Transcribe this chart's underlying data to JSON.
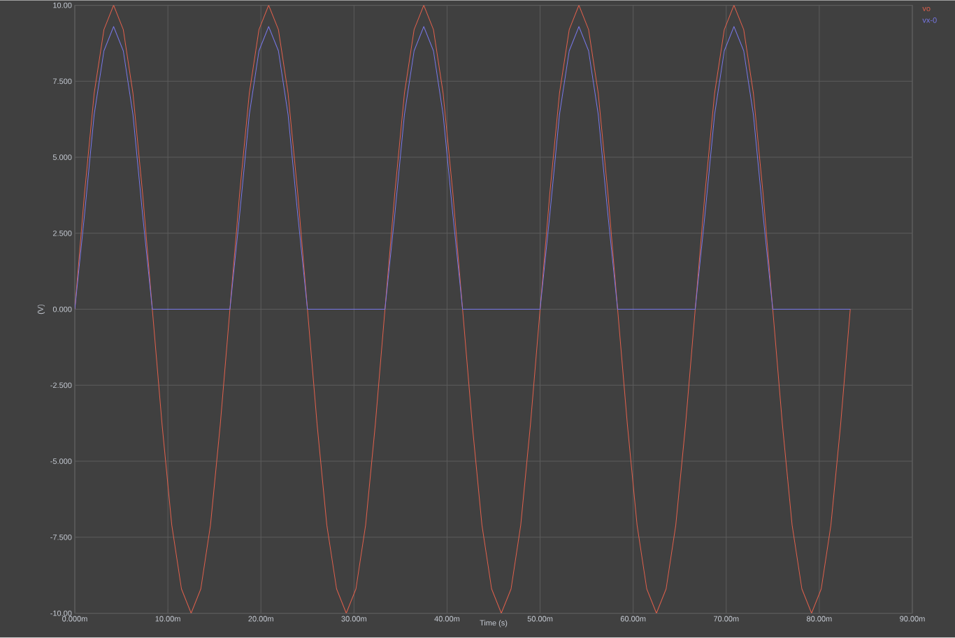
{
  "chart_data": {
    "type": "line",
    "xlabel": "Time (s)",
    "ylabel": "(V)",
    "x": [
      0,
      1.04,
      2.08,
      3.13,
      4.17,
      5.21,
      6.25,
      7.29,
      8.33,
      9.38,
      10.42,
      11.46,
      12.5,
      13.54,
      14.58,
      15.63,
      16.67,
      17.71,
      18.75,
      19.79,
      20.83,
      21.88,
      22.92,
      23.96,
      25,
      26.04,
      27.08,
      28.13,
      29.17,
      30.21,
      31.25,
      32.29,
      33.33,
      34.38,
      35.42,
      36.46,
      37.5,
      38.54,
      39.58,
      40.63,
      41.67,
      42.71,
      43.75,
      44.79,
      45.83,
      46.88,
      47.92,
      48.96,
      50,
      51.04,
      52.08,
      53.13,
      54.17,
      55.21,
      56.25,
      57.29,
      58.33,
      59.38,
      60.42,
      61.46,
      62.5,
      63.54,
      64.58,
      65.63,
      66.67,
      67.71,
      68.75,
      69.79,
      70.83,
      71.88,
      72.92,
      73.96,
      75,
      76.04,
      77.08,
      78.13,
      79.17,
      80.21,
      81.25,
      82.29,
      83.33
    ],
    "series": [
      {
        "name": "vo",
        "color": "#e0604c",
        "values": [
          0,
          3.8,
          7.1,
          9.2,
          10,
          9.2,
          7.1,
          3.8,
          0,
          -3.8,
          -7.1,
          -9.2,
          -10,
          -9.2,
          -7.1,
          -3.8,
          0,
          3.8,
          7.1,
          9.2,
          10,
          9.2,
          7.1,
          3.8,
          0,
          -3.8,
          -7.1,
          -9.2,
          -10,
          -9.2,
          -7.1,
          -3.8,
          0,
          3.8,
          7.1,
          9.2,
          10,
          9.2,
          7.1,
          3.8,
          0,
          -3.8,
          -7.1,
          -9.2,
          -10,
          -9.2,
          -7.1,
          -3.8,
          0,
          3.8,
          7.1,
          9.2,
          10,
          9.2,
          7.1,
          3.8,
          0,
          -3.8,
          -7.1,
          -9.2,
          -10,
          -9.2,
          -7.1,
          -3.8,
          0,
          3.8,
          7.1,
          9.2,
          10,
          9.2,
          7.1,
          3.8,
          0,
          -3.8,
          -7.1,
          -9.2,
          -10,
          -9.2,
          -7.1,
          -3.8,
          0
        ]
      },
      {
        "name": "vx-0",
        "color": "#7878e8",
        "values": [
          0,
          3.1,
          6.4,
          8.5,
          9.3,
          8.5,
          6.4,
          3.1,
          0,
          0,
          0,
          0,
          0,
          0,
          0,
          0,
          0,
          3.1,
          6.4,
          8.5,
          9.3,
          8.5,
          6.4,
          3.1,
          0,
          0,
          0,
          0,
          0,
          0,
          0,
          0,
          0,
          3.1,
          6.4,
          8.5,
          9.3,
          8.5,
          6.4,
          3.1,
          0,
          0,
          0,
          0,
          0,
          0,
          0,
          0,
          0,
          3.1,
          6.4,
          8.5,
          9.3,
          8.5,
          6.4,
          3.1,
          0,
          0,
          0,
          0,
          0,
          0,
          0,
          0,
          0,
          3.1,
          6.4,
          8.5,
          9.3,
          8.5,
          6.4,
          3.1,
          0,
          0,
          0,
          0,
          0,
          0,
          0,
          0,
          0
        ]
      }
    ],
    "xlim": [
      0,
      90
    ],
    "ylim": [
      -10,
      10
    ],
    "xticks": [
      {
        "value": 0,
        "label": "0.000m"
      },
      {
        "value": 10,
        "label": "10.00m"
      },
      {
        "value": 20,
        "label": "20.00m"
      },
      {
        "value": 30,
        "label": "30.00m"
      },
      {
        "value": 40,
        "label": "40.00m"
      },
      {
        "value": 50,
        "label": "50.00m"
      },
      {
        "value": 60,
        "label": "60.00m"
      },
      {
        "value": 70,
        "label": "70.00m"
      },
      {
        "value": 80,
        "label": "80.00m"
      },
      {
        "value": 90,
        "label": "90.00m"
      }
    ],
    "yticks": [
      {
        "value": -10,
        "label": "-10.00"
      },
      {
        "value": -7.5,
        "label": "-7.500"
      },
      {
        "value": -5,
        "label": "-5.000"
      },
      {
        "value": -2.5,
        "label": "-2.500"
      },
      {
        "value": 0,
        "label": "0.000"
      },
      {
        "value": 2.5,
        "label": "2.500"
      },
      {
        "value": 5,
        "label": "5.000"
      },
      {
        "value": 7.5,
        "label": "7.500"
      },
      {
        "value": 10,
        "label": "10.00"
      }
    ],
    "grid": true,
    "legend": "top right"
  }
}
